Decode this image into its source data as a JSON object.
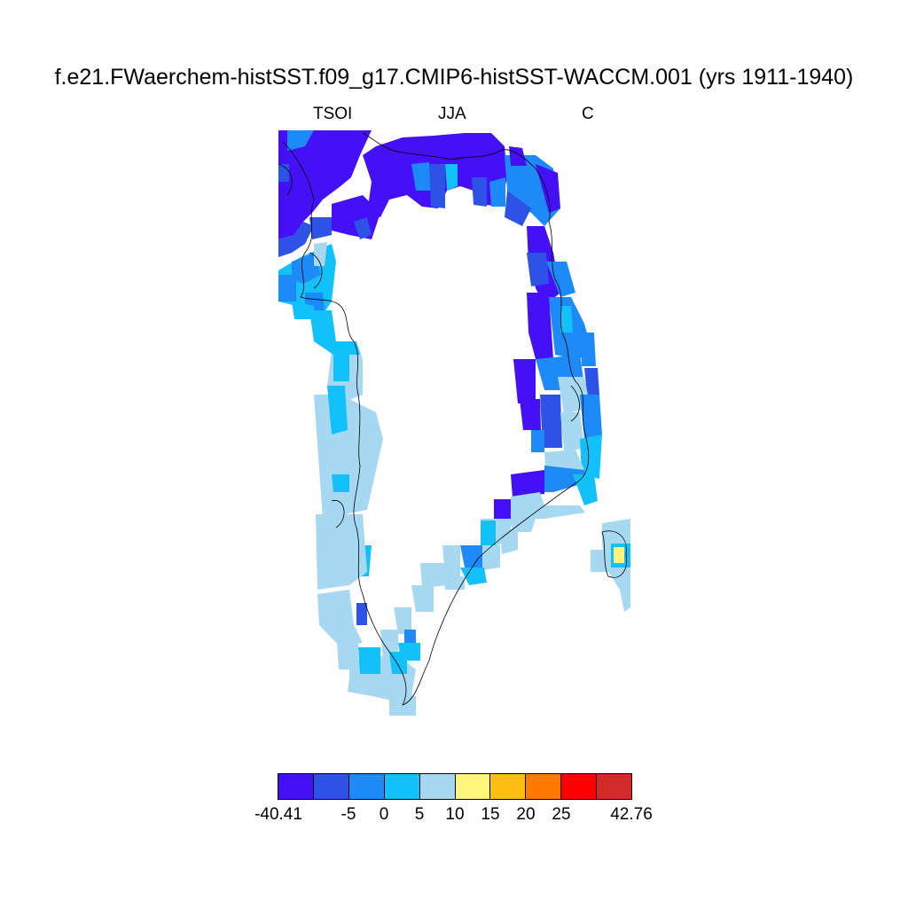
{
  "title": "f.e21.FWaerchem-histSST.f09_g17.CMIP6-histSST-WACCM.001 (yrs 1911-1940)",
  "variable": "TSOI",
  "season": "JJA",
  "units": "C",
  "colorbar": {
    "colors": [
      "#4410f6",
      "#2e52e6",
      "#1e8af8",
      "#12c1fa",
      "#a6d8f2",
      "#fff57c",
      "#ffbf12",
      "#ff7a00",
      "#fe0000",
      "#d42a2a"
    ],
    "labels": [
      "-40.41",
      "-5",
      "0",
      "5",
      "10",
      "15",
      "20",
      "25",
      "42.76"
    ]
  },
  "colors": {
    "land_coast": "#000000",
    "background": "#ffffff"
  }
}
